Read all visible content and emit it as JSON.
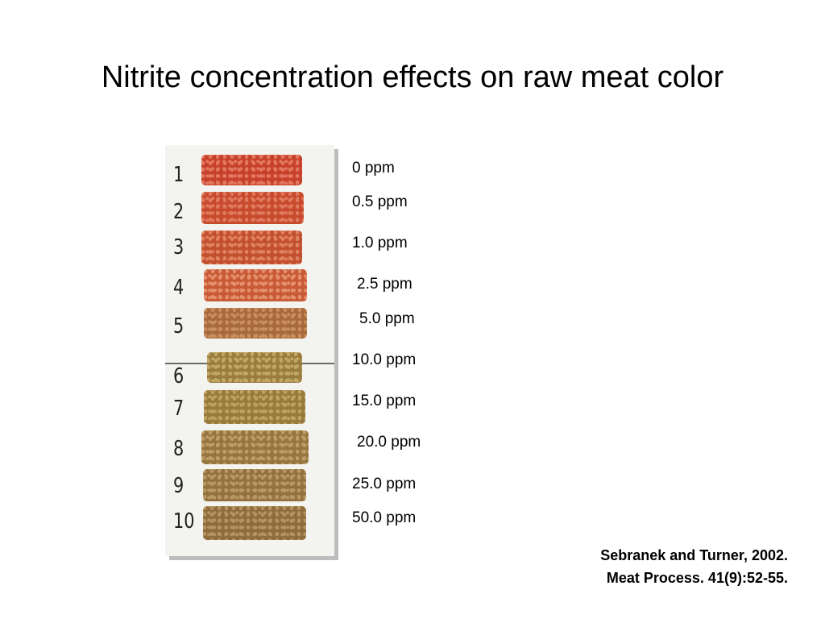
{
  "slide": {
    "title": "Nitrite concentration effects on raw meat color",
    "citation": {
      "line1": "Sebranek and Turner, 2002.",
      "line2": "Meat Process. 41(9):52-55."
    }
  },
  "samples": [
    {
      "number": "1",
      "concentration": "0 ppm",
      "color": "#c7402a",
      "texture": "#e2785f"
    },
    {
      "number": "2",
      "concentration": "0.5 ppm",
      "color": "#c74a2c",
      "texture": "#e07a5f"
    },
    {
      "number": "3",
      "concentration": "1.0 ppm",
      "color": "#c2502e",
      "texture": "#e08262"
    },
    {
      "number": "4",
      "concentration": "2.5 ppm",
      "color": "#c85a36",
      "texture": "#e5906e"
    },
    {
      "number": "5",
      "concentration": "5.0 ppm",
      "color": "#a86a3c",
      "texture": "#c98f5e"
    },
    {
      "number": "6",
      "concentration": "10.0 ppm",
      "color": "#9a7d3e",
      "texture": "#c2a866"
    },
    {
      "number": "7",
      "concentration": "15.0 ppm",
      "color": "#987a3c",
      "texture": "#bfa262"
    },
    {
      "number": "8",
      "concentration": "20.0 ppm",
      "color": "#977540",
      "texture": "#be9e66"
    },
    {
      "number": "9",
      "concentration": "25.0 ppm",
      "color": "#937240",
      "texture": "#b99a66"
    },
    {
      "number": "10",
      "concentration": "50.0 ppm",
      "color": "#8e6c3c",
      "texture": "#b59362"
    }
  ]
}
